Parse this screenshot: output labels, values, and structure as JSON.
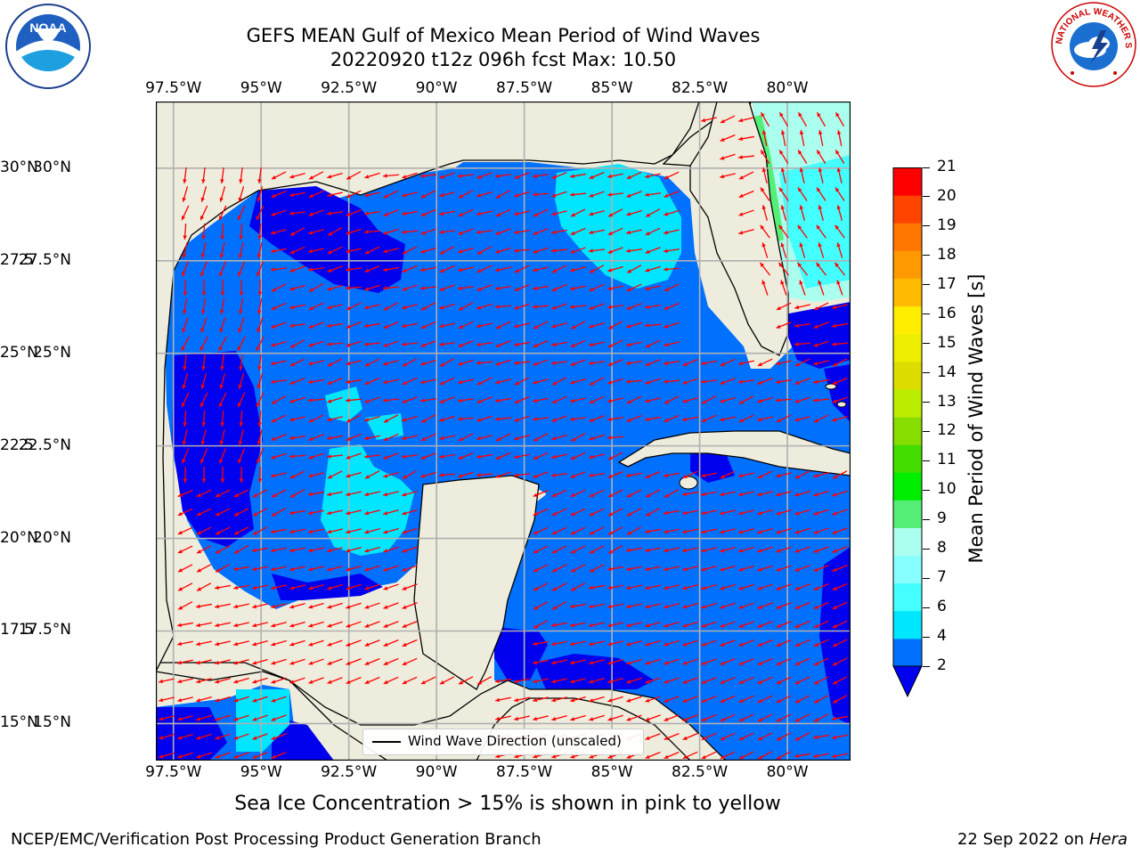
{
  "header": {
    "title_line1": "GEFS MEAN Gulf of Mexico Mean Period of Wind Waves",
    "title_line2": "20220920 t12z 096h fcst   Max: 10.50"
  },
  "logos": {
    "noaa_text": "NOAA",
    "nws_text": "NATIONAL WEATHER SERVICE"
  },
  "map": {
    "lon_ticks": [
      "97.5°W",
      "95°W",
      "92.5°W",
      "90°W",
      "87.5°W",
      "85°W",
      "82.5°W",
      "80°W"
    ],
    "lon_values": [
      -97.5,
      -95,
      -92.5,
      -90,
      -87.5,
      -85,
      -82.5,
      -80
    ],
    "lat_ticks_left": [
      "30°N",
      "27.5°N",
      "25°N",
      "22.5°N",
      "20°N",
      "17.5°N",
      "15°N"
    ],
    "lat_ticks_right": [
      "30°N",
      "27.5",
      "25°N",
      "22.5",
      "20°N",
      "17.5",
      "15°N"
    ],
    "lat_values": [
      30,
      27.5,
      25,
      22.5,
      20,
      17.5,
      15
    ],
    "extent": {
      "lon_min": -98,
      "lon_max": -78.2,
      "lat_min": 14,
      "lat_max": 31.8
    },
    "arrow_color": "#ff0000",
    "land_color": "#eeecdc",
    "legend_label": "Wind Wave Direction (unscaled)"
  },
  "colorbar": {
    "label": "Mean Period of Wind Waves [s]",
    "ticks": [
      "2",
      "4",
      "6",
      "7",
      "8",
      "9",
      "10",
      "11",
      "12",
      "13",
      "14",
      "15",
      "16",
      "17",
      "18",
      "19",
      "20",
      "21"
    ],
    "colors": [
      "#0070ff",
      "#00e6ff",
      "#44ffff",
      "#88ffff",
      "#aaffee",
      "#55ee77",
      "#00ee00",
      "#44dd00",
      "#88dd00",
      "#bbee00",
      "#dddd00",
      "#eeee00",
      "#ffee00",
      "#ffbb00",
      "#ff9900",
      "#ff7700",
      "#ff4400",
      "#ff0000"
    ],
    "extend_color": "#0000ee"
  },
  "chart_data": {
    "type": "heatmap",
    "title": "GEFS MEAN Gulf of Mexico Mean Period of Wind Waves",
    "subtitle": "20220920 t12z 096h fcst   Max: 10.50",
    "variable": "Mean Period of Wind Waves [s]",
    "max": 10.5
  },
  "captions": {
    "sea_ice": "Sea Ice Concentration > 15% is shown in pink to yellow"
  },
  "footer": {
    "credit": "NCEP/EMC/Verification Post Processing Product Generation Branch",
    "date": "22 Sep 2022 on",
    "host": "Hera"
  }
}
